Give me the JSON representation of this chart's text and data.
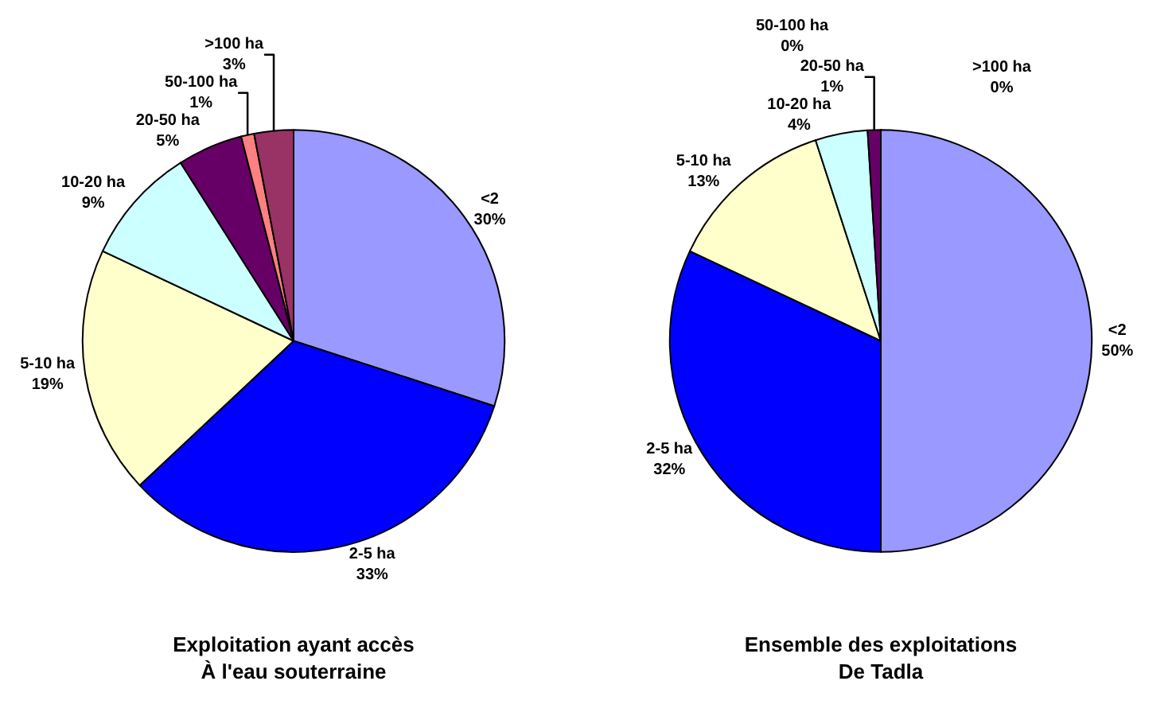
{
  "chart_data": [
    {
      "type": "pie",
      "title": "Exploitation ayant accès\nÀ l'eau souterraine",
      "categories": [
        "<2",
        "2-5 ha",
        "5-10 ha",
        "10-20 ha",
        "20-50 ha",
        "50-100 ha",
        ">100 ha"
      ],
      "values": [
        30,
        33,
        19,
        9,
        5,
        1,
        3
      ],
      "value_labels": [
        "30%",
        "33%",
        "19%",
        "9%",
        "5%",
        "1%",
        "3%"
      ],
      "colors": [
        "#9999ff",
        "#0000ff",
        "#ffffcc",
        "#ccffff",
        "#660066",
        "#ff8080",
        "#993366"
      ]
    },
    {
      "type": "pie",
      "title": "Ensemble des exploitations\nDe Tadla",
      "categories": [
        "<2",
        "2-5 ha",
        "5-10 ha",
        "10-20 ha",
        "20-50 ha",
        "50-100 ha",
        ">100 ha"
      ],
      "values": [
        50,
        32,
        13,
        4,
        1,
        0,
        0
      ],
      "value_labels": [
        "50%",
        "32%",
        "13%",
        "4%",
        "1%",
        "0%",
        "0%"
      ],
      "colors": [
        "#9999ff",
        "#0000ff",
        "#ffffcc",
        "#ccffff",
        "#660066",
        "#ff8080",
        "#993366"
      ]
    }
  ]
}
